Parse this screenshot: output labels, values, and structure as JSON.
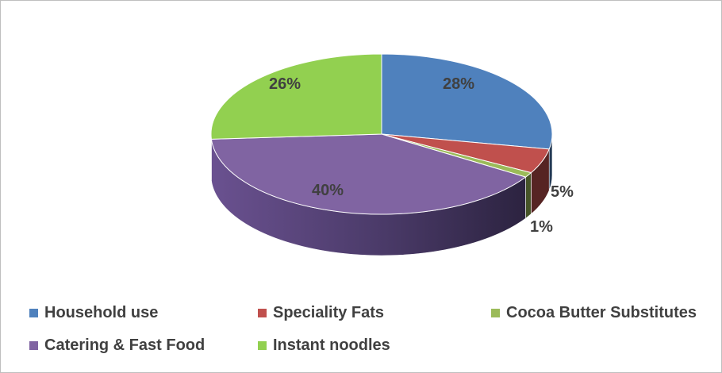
{
  "chart_data": {
    "type": "pie",
    "title": "",
    "labels": [
      "Household use",
      "Speciality Fats",
      "Cocoa Butter Substitutes",
      "Catering & Fast Food",
      "Instant noodles"
    ],
    "values": [
      28,
      5,
      1,
      40,
      26
    ],
    "value_labels": [
      "28%",
      "5%",
      "1%",
      "40%",
      "26%"
    ],
    "colors": [
      "#4f81bd",
      "#c0504d",
      "#9bbb59",
      "#8064a2",
      "#92d050"
    ],
    "legend_position": "bottom",
    "style": "3d"
  }
}
